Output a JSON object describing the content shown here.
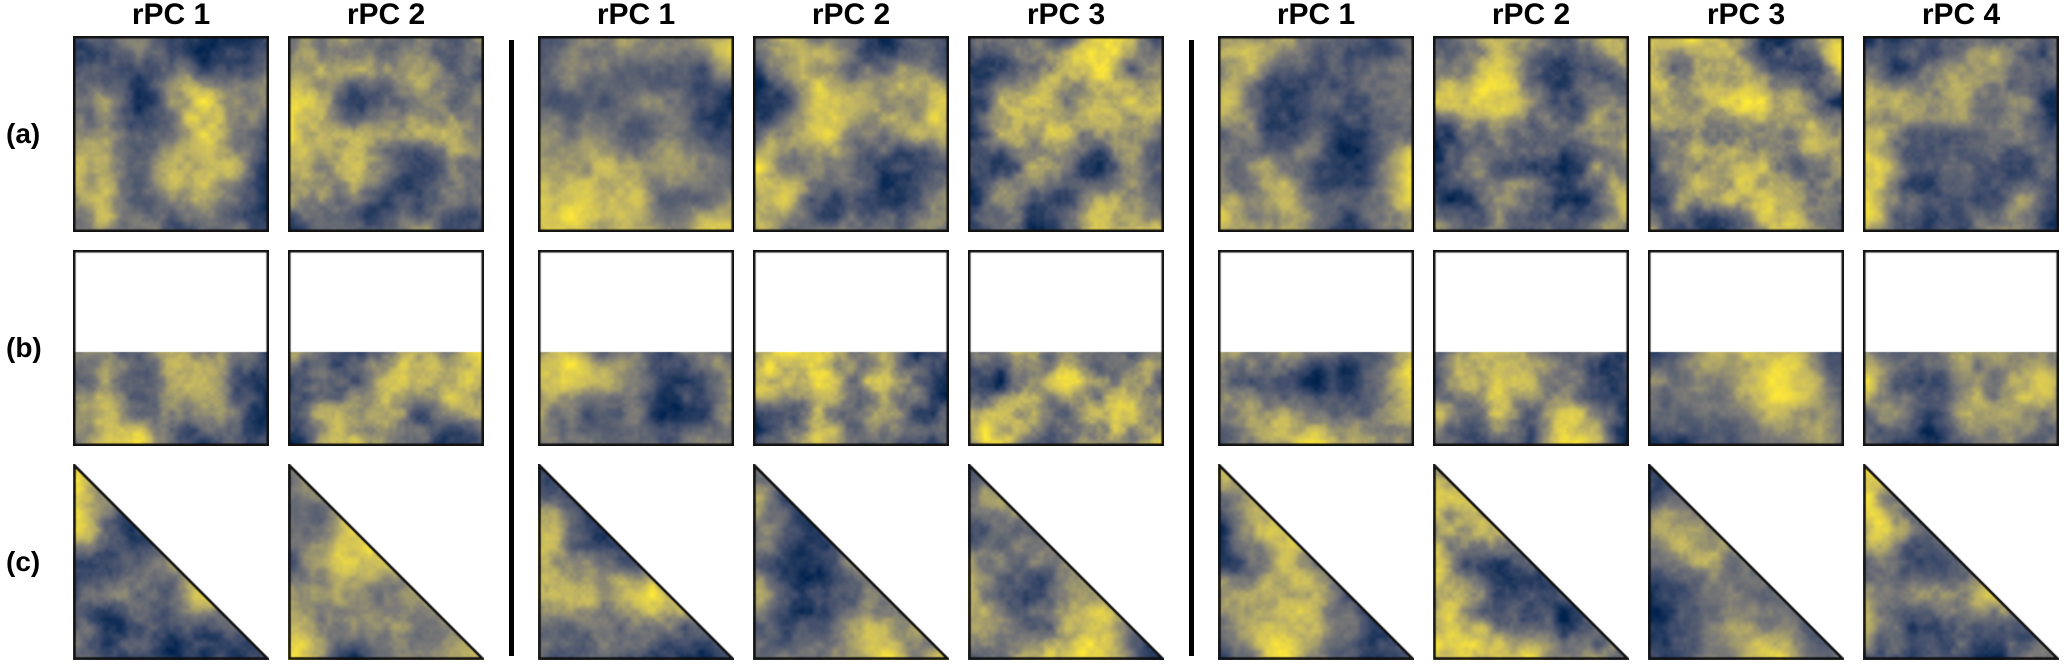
{
  "figure": {
    "type": "heatmap-grid",
    "background": "#ffffff",
    "border_color": "#111111",
    "separator_color": "#000000",
    "row_labels": [
      "(a)",
      "(b)",
      "(c)"
    ],
    "row_masks": [
      "full",
      "bottom-half",
      "lower-left-triangle"
    ],
    "groups": [
      {
        "name": "group-1",
        "columns": [
          "rPC 1",
          "rPC 2"
        ]
      },
      {
        "name": "group-2",
        "columns": [
          "rPC 1",
          "rPC 2",
          "rPC 3"
        ]
      },
      {
        "name": "group-3",
        "columns": [
          "rPC 1",
          "rPC 2",
          "rPC 3",
          "rPC 4"
        ]
      }
    ],
    "colormap": {
      "name": "cividis-like-blue-yellow",
      "stops": [
        {
          "t": 0.0,
          "color": "#00224e"
        },
        {
          "t": 0.25,
          "color": "#424e6c"
        },
        {
          "t": 0.5,
          "color": "#7c7b78"
        },
        {
          "t": 0.75,
          "color": "#c4b762"
        },
        {
          "t": 1.0,
          "color": "#fee838"
        }
      ]
    }
  }
}
